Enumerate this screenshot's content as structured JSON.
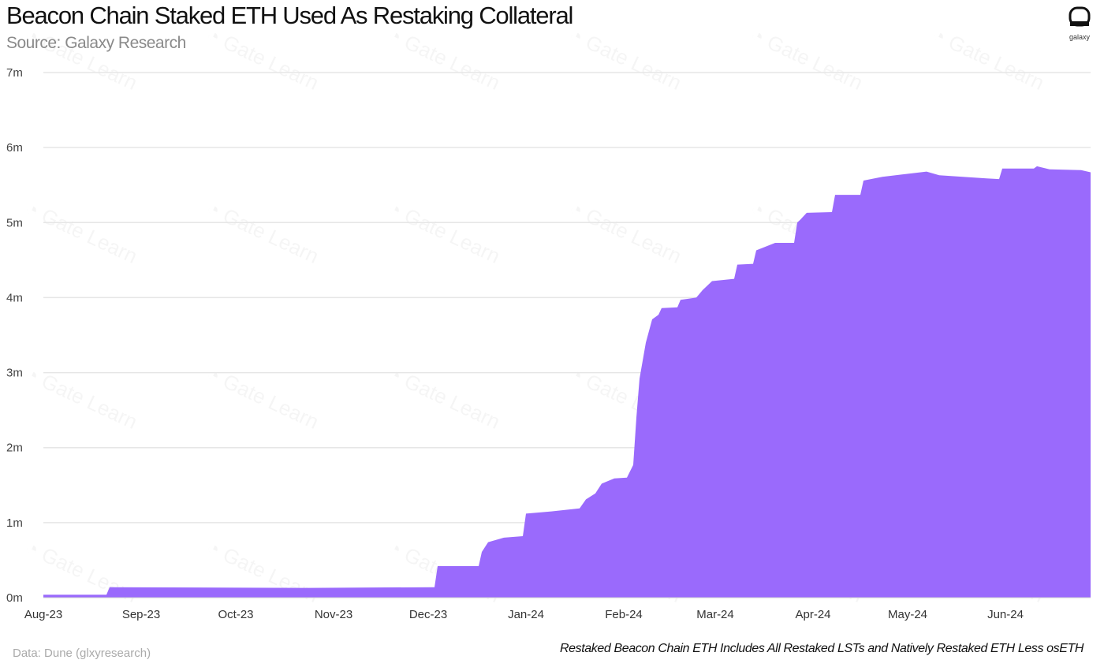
{
  "chart_data": {
    "type": "area",
    "title": "Beacon Chain Staked ETH Used As Restaking Collateral",
    "subtitle": "Source: Galaxy Research",
    "xlabel": "",
    "ylabel": "",
    "ylim": [
      0,
      7000000
    ],
    "yticks": [
      {
        "value": 0,
        "label": "0m"
      },
      {
        "value": 1000000,
        "label": "1m"
      },
      {
        "value": 2000000,
        "label": "2m"
      },
      {
        "value": 3000000,
        "label": "3m"
      },
      {
        "value": 4000000,
        "label": "4m"
      },
      {
        "value": 5000000,
        "label": "5m"
      },
      {
        "value": 6000000,
        "label": "6m"
      },
      {
        "value": 7000000,
        "label": "7m"
      }
    ],
    "xlim": [
      "2023-08-01",
      "2024-06-28"
    ],
    "xticks": [
      {
        "date": "2023-08-01",
        "label": "Aug-23"
      },
      {
        "date": "2023-09-01",
        "label": "Sep-23"
      },
      {
        "date": "2023-10-01",
        "label": "Oct-23"
      },
      {
        "date": "2023-11-01",
        "label": "Nov-23"
      },
      {
        "date": "2023-12-01",
        "label": "Dec-23"
      },
      {
        "date": "2024-01-01",
        "label": "Jan-24"
      },
      {
        "date": "2024-02-01",
        "label": "Feb-24"
      },
      {
        "date": "2024-03-01",
        "label": "Mar-24"
      },
      {
        "date": "2024-04-01",
        "label": "Apr-24"
      },
      {
        "date": "2024-05-01",
        "label": "May-24"
      },
      {
        "date": "2024-06-01",
        "label": "Jun-24"
      }
    ],
    "grid": true,
    "series": [
      {
        "name": "Restaked Beacon Chain ETH",
        "color": "#9a6afc",
        "points": [
          [
            "2023-08-01",
            40000
          ],
          [
            "2023-08-21",
            40000
          ],
          [
            "2023-08-22",
            140000
          ],
          [
            "2023-10-24",
            130000
          ],
          [
            "2023-12-03",
            140000
          ],
          [
            "2023-12-04",
            420000
          ],
          [
            "2023-12-17",
            420000
          ],
          [
            "2023-12-18",
            610000
          ],
          [
            "2023-12-20",
            740000
          ],
          [
            "2023-12-25",
            800000
          ],
          [
            "2023-12-31",
            820000
          ],
          [
            "2024-01-01",
            1120000
          ],
          [
            "2024-01-09",
            1150000
          ],
          [
            "2024-01-18",
            1190000
          ],
          [
            "2024-01-20",
            1310000
          ],
          [
            "2024-01-23",
            1390000
          ],
          [
            "2024-01-25",
            1520000
          ],
          [
            "2024-01-29",
            1590000
          ],
          [
            "2024-02-02",
            1600000
          ],
          [
            "2024-02-04",
            1770000
          ],
          [
            "2024-02-05",
            2400000
          ],
          [
            "2024-02-06",
            2920000
          ],
          [
            "2024-02-08",
            3400000
          ],
          [
            "2024-02-10",
            3710000
          ],
          [
            "2024-02-12",
            3770000
          ],
          [
            "2024-02-13",
            3860000
          ],
          [
            "2024-02-18",
            3870000
          ],
          [
            "2024-02-19",
            3970000
          ],
          [
            "2024-02-24",
            4000000
          ],
          [
            "2024-02-26",
            4100000
          ],
          [
            "2024-02-29",
            4220000
          ],
          [
            "2024-03-07",
            4250000
          ],
          [
            "2024-03-08",
            4440000
          ],
          [
            "2024-03-13",
            4450000
          ],
          [
            "2024-03-14",
            4630000
          ],
          [
            "2024-03-20",
            4730000
          ],
          [
            "2024-03-26",
            4730000
          ],
          [
            "2024-03-27",
            5000000
          ],
          [
            "2024-03-28",
            5040000
          ],
          [
            "2024-03-30",
            5130000
          ],
          [
            "2024-04-07",
            5140000
          ],
          [
            "2024-04-08",
            5370000
          ],
          [
            "2024-04-16",
            5370000
          ],
          [
            "2024-04-17",
            5560000
          ],
          [
            "2024-04-23",
            5610000
          ],
          [
            "2024-05-07",
            5680000
          ],
          [
            "2024-05-11",
            5630000
          ],
          [
            "2024-05-26",
            5590000
          ],
          [
            "2024-05-30",
            5580000
          ],
          [
            "2024-05-31",
            5720000
          ],
          [
            "2024-06-10",
            5720000
          ],
          [
            "2024-06-11",
            5750000
          ],
          [
            "2024-06-15",
            5710000
          ],
          [
            "2024-06-25",
            5700000
          ],
          [
            "2024-06-28",
            5670000
          ]
        ]
      }
    ],
    "legend": "none",
    "annotations": {
      "data_source": "Data: Dune (glxyresearch)",
      "note": "Restaked Beacon Chain ETH Includes All Restaked LSTs and Natively Restaked ETH Less osETH"
    }
  },
  "logo": {
    "text": "galaxy"
  },
  "watermark": {
    "text": "Gate Learn"
  }
}
